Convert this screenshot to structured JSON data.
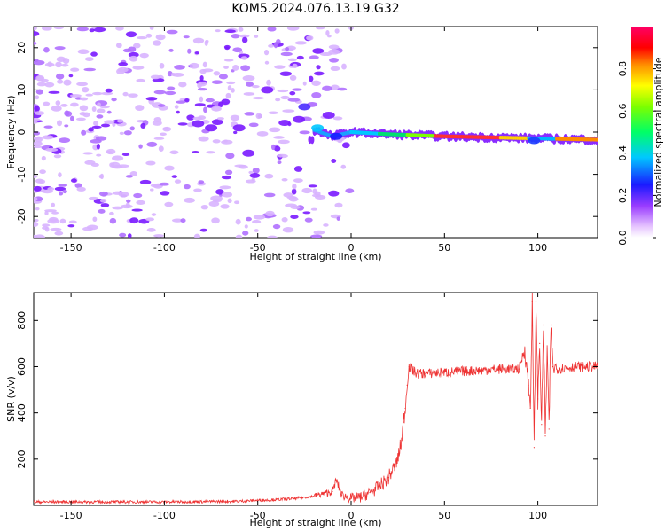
{
  "title": "KOM5.2024.076.13.19.G32",
  "chart_data": [
    {
      "type": "heatmap",
      "xlabel": "Height of straight line (km)",
      "ylabel": "Frequency (Hz)",
      "xlim": [
        -170,
        132
      ],
      "ylim": [
        -25,
        25
      ],
      "xticks": [
        -150,
        -100,
        -50,
        0,
        50,
        100
      ],
      "yticks": [
        -20,
        -10,
        0,
        10,
        20
      ],
      "colorbar": {
        "label": "Normalized spectral amplitude",
        "range": [
          0,
          1
        ],
        "ticks": [
          0.0,
          0.2,
          0.4,
          0.6,
          0.8
        ]
      },
      "ridge": {
        "description_points": [
          {
            "x": -20,
            "y": 0.5
          },
          {
            "x": -10,
            "y": -1.0
          },
          {
            "x": 0,
            "y": 0.0
          },
          {
            "x": 20,
            "y": -0.5
          },
          {
            "x": 50,
            "y": -1.0
          },
          {
            "x": 100,
            "y": -1.5
          },
          {
            "x": 132,
            "y": -1.8
          }
        ]
      }
    },
    {
      "type": "line",
      "xlabel": "Height of straight line (km)",
      "ylabel": "SNR (v/v)",
      "xlim": [
        -170,
        132
      ],
      "ylim": [
        0,
        920
      ],
      "xticks": [
        -150,
        -100,
        -50,
        0,
        50,
        100
      ],
      "yticks": [
        200,
        400,
        600,
        800
      ],
      "color": "#ee3333",
      "series": [
        {
          "x": [
            -170,
            -150,
            -120,
            -100,
            -80,
            -60,
            -40,
            -30,
            -20,
            -10,
            -8,
            -5,
            0,
            5,
            10,
            15,
            20,
            23,
            25,
            27,
            28,
            29,
            30,
            31,
            35,
            40,
            50,
            60,
            70,
            80,
            90,
            93,
            95,
            96,
            97,
            98,
            99,
            100,
            101,
            102,
            103,
            104,
            105,
            106,
            107,
            108,
            110,
            120,
            132
          ],
          "y": [
            15,
            15,
            15,
            15,
            16,
            18,
            25,
            30,
            40,
            60,
            110,
            45,
            30,
            35,
            55,
            80,
            120,
            165,
            200,
            280,
            360,
            420,
            520,
            600,
            570,
            570,
            575,
            580,
            585,
            590,
            590,
            680,
            520,
            420,
            880,
            250,
            880,
            460,
            700,
            350,
            780,
            300,
            680,
            330,
            780,
            600,
            590,
            600,
            600
          ]
        }
      ]
    }
  ]
}
